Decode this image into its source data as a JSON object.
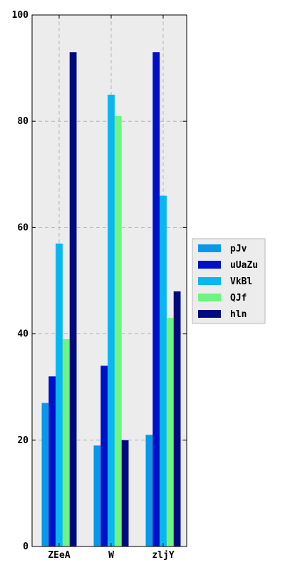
{
  "chart_data": {
    "type": "bar",
    "categories": [
      "ZEeA",
      "W",
      "zljY"
    ],
    "series": [
      {
        "name": "pJv",
        "color": "#0a97e8",
        "values": [
          27,
          19,
          21
        ]
      },
      {
        "name": "uUaZu",
        "color": "#0010c8",
        "values": [
          32,
          34,
          93
        ]
      },
      {
        "name": "VkBl",
        "color": "#06b7f2",
        "values": [
          57,
          85,
          66
        ]
      },
      {
        "name": "QJf",
        "color": "#6cf580",
        "values": [
          39,
          81,
          43
        ]
      },
      {
        "name": "hln",
        "color": "#000a80",
        "values": [
          93,
          20,
          48
        ]
      }
    ],
    "ylim": [
      0,
      100
    ],
    "yticks": [
      0,
      20,
      40,
      60,
      80,
      100
    ],
    "grid": true,
    "legend_position": "right-center",
    "plot_background": "#ececec"
  }
}
